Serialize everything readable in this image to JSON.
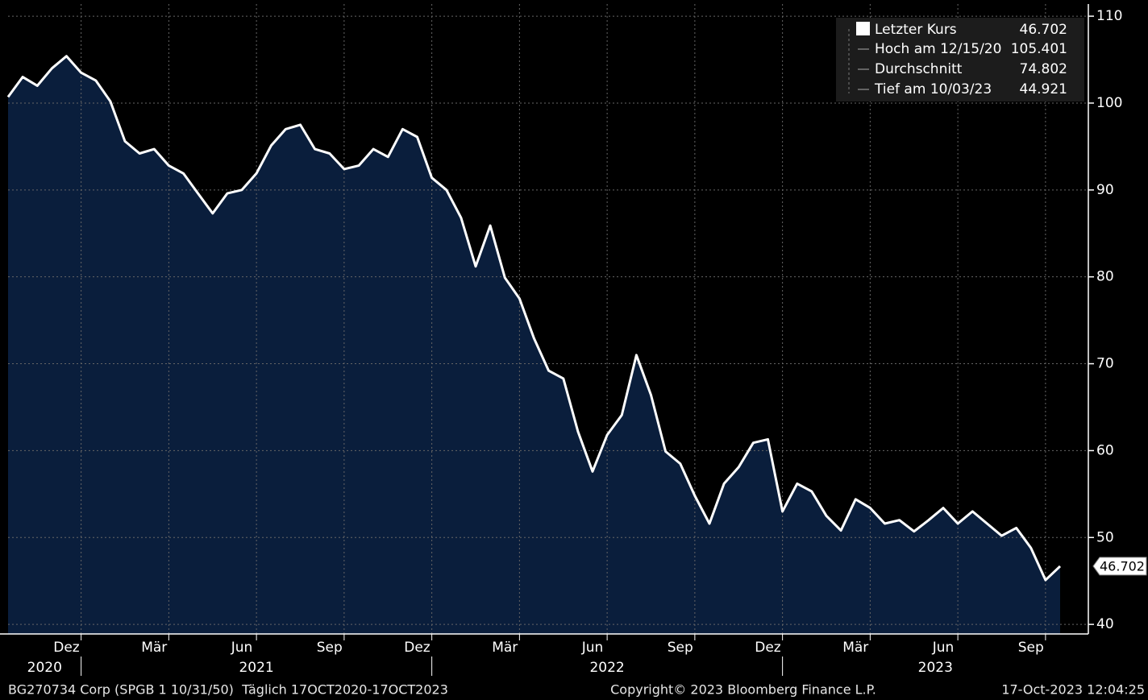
{
  "chart_data": {
    "type": "area",
    "categories": [
      null,
      null,
      null,
      null,
      "Dez",
      null,
      null,
      null,
      null,
      null,
      "Mär",
      null,
      null,
      null,
      null,
      null,
      "Jun",
      null,
      null,
      null,
      null,
      null,
      "Sep",
      null,
      null,
      null,
      null,
      null,
      "Dez",
      null,
      null,
      null,
      null,
      null,
      "Mär",
      null,
      null,
      null,
      null,
      null,
      "Jun",
      null,
      null,
      null,
      null,
      null,
      "Sep",
      null,
      null,
      null,
      null,
      null,
      "Dez",
      null,
      null,
      null,
      null,
      null,
      "Mär",
      null,
      null,
      null,
      null,
      null,
      "Jun",
      null,
      null,
      null,
      null,
      null,
      "Sep",
      null,
      null
    ],
    "years": [
      "2020",
      "2021",
      "2022",
      "2023"
    ],
    "series": [
      {
        "name": "Letzter Kurs",
        "color": "#ffffff",
        "fill": "#0a1e3c",
        "values": [
          100.7,
          103,
          102,
          104,
          105.4,
          103.5,
          102.6,
          100.2,
          95.6,
          94.2,
          94.7,
          92.8,
          91.9,
          89.6,
          87.3,
          89.6,
          90,
          91.9,
          95.1,
          97,
          97.5,
          94.7,
          94.2,
          92.4,
          92.8,
          94.7,
          93.8,
          97,
          96.1,
          91.4,
          90,
          86.8,
          81.2,
          85.9,
          79.9,
          77.5,
          72.9,
          69.2,
          68.3,
          62.2,
          57.6,
          61.8,
          64.1,
          71,
          66.4,
          59.9,
          58.5,
          54.8,
          51.6,
          56.2,
          58.1,
          60.9,
          61.3,
          53,
          56.2,
          55.3,
          52.5,
          50.8,
          54.4,
          53.4,
          51.6,
          52,
          50.7,
          52,
          53.4,
          51.6,
          53,
          51.6,
          50.2,
          51.1,
          48.8,
          45.1,
          46.7
        ]
      }
    ],
    "last_value": 46.702,
    "legend_stats": [
      {
        "label": "Hoch am 12/15/20",
        "value": 105.401
      },
      {
        "label": "Durchschnitt",
        "value": 74.802
      },
      {
        "label": "Tief am 10/03/23",
        "value": 44.921
      }
    ],
    "ylim": [
      38.9,
      111.4
    ],
    "yticks": [
      40,
      50,
      60,
      70,
      80,
      90,
      100,
      110
    ],
    "grid": true,
    "footer": {
      "left": "BG270734 Corp (SPGB 1 10/31/50)  Täglich 17OCT2020-17OCT2023",
      "center": "Copyright© 2023 Bloomberg Finance L.P.",
      "right": "17-Oct-2023 12:04:25"
    }
  }
}
